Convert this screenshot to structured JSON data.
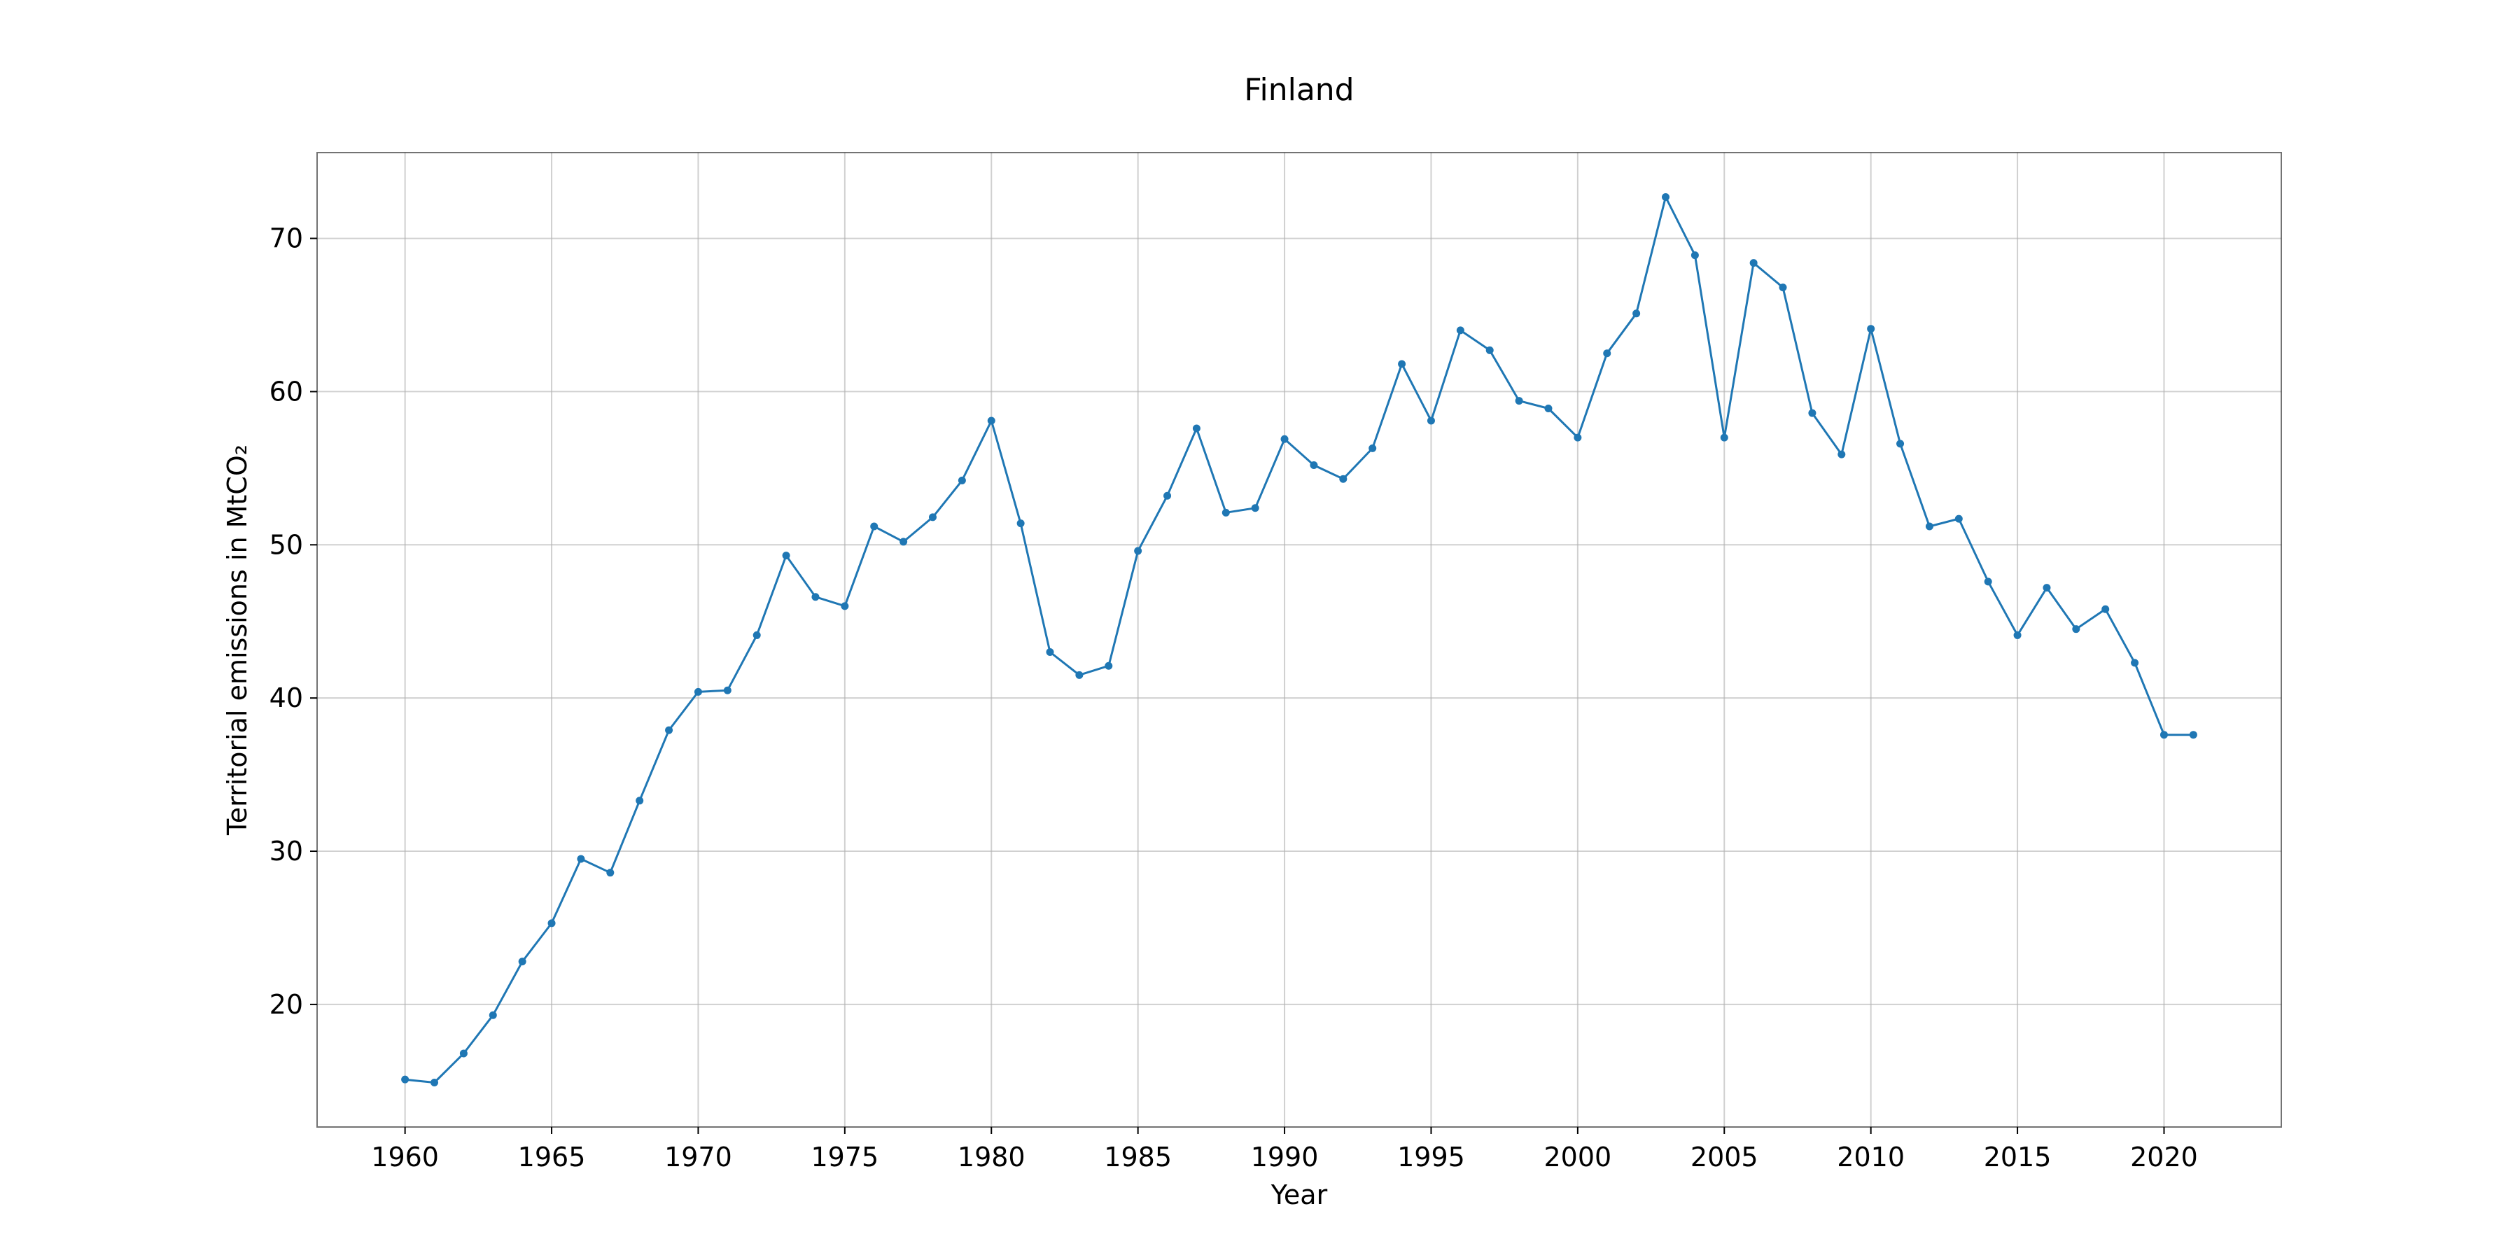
{
  "chart_data": {
    "type": "line",
    "title": "Finland",
    "xlabel": "Year",
    "ylabel": "Territorial emissions in MtCO₂",
    "xlim": [
      1957,
      2024
    ],
    "ylim": [
      12,
      75.6
    ],
    "xticks": [
      1960,
      1965,
      1970,
      1975,
      1980,
      1985,
      1990,
      1995,
      2000,
      2005,
      2010,
      2015,
      2020
    ],
    "yticks": [
      20,
      30,
      40,
      50,
      60,
      70
    ],
    "grid": true,
    "legend": "none",
    "color": "#1f77b4",
    "series": [
      {
        "name": "Finland",
        "x": [
          1960,
          1961,
          1962,
          1963,
          1964,
          1965,
          1966,
          1967,
          1968,
          1969,
          1970,
          1971,
          1972,
          1973,
          1974,
          1975,
          1976,
          1977,
          1978,
          1979,
          1980,
          1981,
          1982,
          1983,
          1984,
          1985,
          1986,
          1987,
          1988,
          1989,
          1990,
          1991,
          1992,
          1993,
          1994,
          1995,
          1996,
          1997,
          1998,
          1999,
          2000,
          2001,
          2002,
          2003,
          2004,
          2005,
          2006,
          2007,
          2008,
          2009,
          2010,
          2011,
          2012,
          2013,
          2014,
          2015,
          2016,
          2017,
          2018,
          2019,
          2020,
          2021
        ],
        "values": [
          15.1,
          14.9,
          16.8,
          19.3,
          22.8,
          25.3,
          29.5,
          28.6,
          33.3,
          37.9,
          40.4,
          40.5,
          44.1,
          49.3,
          46.6,
          46.0,
          51.2,
          50.2,
          51.8,
          54.2,
          58.1,
          51.4,
          43.0,
          41.5,
          42.1,
          49.6,
          53.2,
          57.6,
          52.1,
          52.4,
          56.9,
          55.2,
          54.3,
          56.3,
          61.8,
          58.1,
          64.0,
          62.7,
          59.4,
          58.9,
          57.0,
          62.5,
          65.1,
          72.7,
          68.9,
          57.0,
          68.4,
          66.8,
          58.6,
          55.9,
          64.1,
          56.6,
          51.2,
          51.7,
          47.6,
          44.1,
          47.2,
          44.5,
          45.8,
          42.3,
          37.6,
          37.6
        ]
      }
    ]
  }
}
